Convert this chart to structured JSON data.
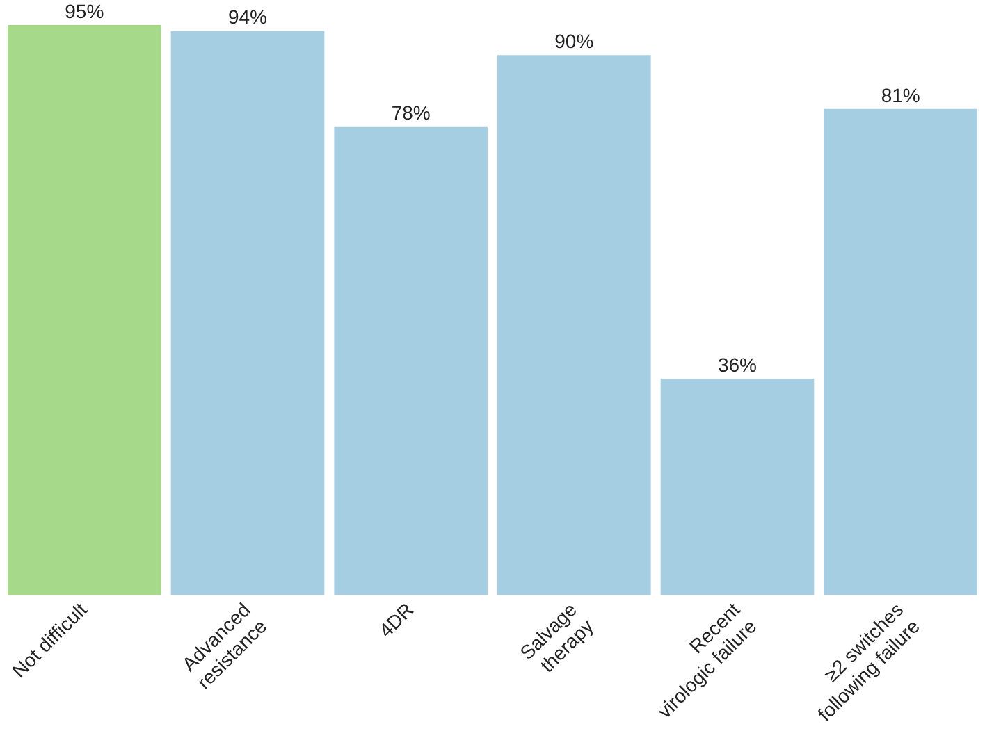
{
  "chart_data": {
    "type": "bar",
    "categories": [
      "Not difficult",
      "Advanced\nresistance",
      "4DR",
      "Salvage\ntherapy",
      "Recent\nvirologic failure",
      "≥2 switches\nfollowing failure"
    ],
    "values": [
      95,
      94,
      78,
      90,
      36,
      81
    ],
    "colors": [
      "#a6d98a",
      "#a6cee3",
      "#a6cee3",
      "#a6cee3",
      "#a6cee3",
      "#a6cee3"
    ],
    "value_labels": [
      "95%",
      "94%",
      "78%",
      "90%",
      "36%",
      "81%"
    ],
    "grid": false,
    "legend": false
  }
}
